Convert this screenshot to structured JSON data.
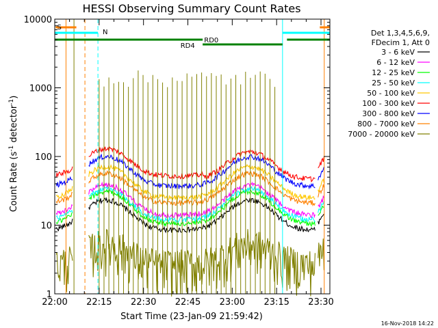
{
  "chart_data": {
    "type": "line",
    "title": "HESSI Observing Summary Count Rates",
    "xlabel": "Start Time (23-Jan-09 21:59:42)",
    "ylabel": "Count Rate (s⁻¹ detector⁻¹)",
    "ylabel_parts": {
      "main": "Count Rate (s",
      "exp1": "-1",
      "mid": " detector",
      "exp2": "-1",
      "end": ")"
    },
    "y_scale": "log",
    "ylim": [
      1,
      10000
    ],
    "xlim_minutes": [
      0,
      93
    ],
    "x_ticks": [
      {
        "label": "22:00",
        "min": 0
      },
      {
        "label": "22:15",
        "min": 15
      },
      {
        "label": "22:30",
        "min": 30
      },
      {
        "label": "22:45",
        "min": 45
      },
      {
        "label": "23:00",
        "min": 60
      },
      {
        "label": "23:15",
        "min": 75
      },
      {
        "label": "23:30",
        "min": 90
      }
    ],
    "y_ticks": [
      {
        "label": "1",
        "value": 1
      },
      {
        "label": "10",
        "value": 10
      },
      {
        "label": "100",
        "value": 100
      },
      {
        "label": "1000",
        "value": 1000
      },
      {
        "label": "10000",
        "value": 10000
      }
    ],
    "legend_header": [
      "Det 1,3,4,5,6,9,",
      "FDecim 1, Att 0"
    ],
    "legend_position": "right",
    "series": [
      {
        "name": "3 - 6 keV",
        "color": "#000000",
        "base": 8.5,
        "amp": 1.75
      },
      {
        "name": "6 - 12 keV",
        "color": "#ff00ff",
        "base": 14,
        "amp": 1.75
      },
      {
        "name": "12 - 25 keV",
        "color": "#00ff00",
        "base": 10.5,
        "amp": 1.95
      },
      {
        "name": "25 - 50 keV",
        "color": "#00ffff",
        "base": 12,
        "amp": 1.8
      },
      {
        "name": "50 - 100 keV",
        "color": "#ffc800",
        "base": 25,
        "amp": 1.85
      },
      {
        "name": "100 - 300 keV",
        "color": "#ff0000",
        "base": 52,
        "amp": 1.5
      },
      {
        "name": "300 - 800 keV",
        "color": "#0000ff",
        "base": 37,
        "amp": 1.7
      },
      {
        "name": "800 - 7000 keV",
        "color": "#ff8000",
        "base": 21,
        "amp": 1.7
      },
      {
        "name": "7000 - 20000 keV",
        "color": "#808000",
        "base": 2.2,
        "amp": 1.0
      }
    ],
    "profile": {
      "segments": [
        [
          0.5,
          6.0
        ],
        [
          11.5,
          88.0
        ],
        [
          89.0,
          91.0
        ]
      ],
      "peaks_minutes": [
        17.5,
        66.0
      ],
      "width_minutes": 9.0,
      "step_drop_minutes": 50.0,
      "step_factor": 0.9,
      "exit_rise_minutes": [
        88.0,
        91.0
      ],
      "seed": 17
    },
    "spikes": {
      "color": "#808000",
      "start_min": 15,
      "end_min": 76,
      "period_min": 1.65,
      "min_height": 1000,
      "max_height": 1800
    },
    "flags": {
      "saa_label": "S",
      "saa_color": "#ff8000",
      "night_label": "N",
      "night_color": "#00ffff",
      "rd0_label": "RD0",
      "rd4_label": "RD4",
      "decim_color": "#008000",
      "vertical_markers": [
        {
          "min": 0,
          "color": "#00ffff",
          "dash": false
        },
        {
          "min": 3.8,
          "color": "#ff8000",
          "dash": false
        },
        {
          "min": 6.5,
          "color": "#808000",
          "dash": false
        },
        {
          "min": 10.2,
          "color": "#ff8000",
          "dash": true
        },
        {
          "min": 14.6,
          "color": "#00ffff",
          "dash": true
        },
        {
          "min": 77.0,
          "color": "#00ffff",
          "dash": false
        },
        {
          "min": 91.1,
          "color": "#ff8000",
          "dash": false
        },
        {
          "min": 93.0,
          "color": "#00ffff",
          "dash": true
        }
      ]
    }
  },
  "footer": {
    "date": "16-Nov-2018 14:22"
  }
}
